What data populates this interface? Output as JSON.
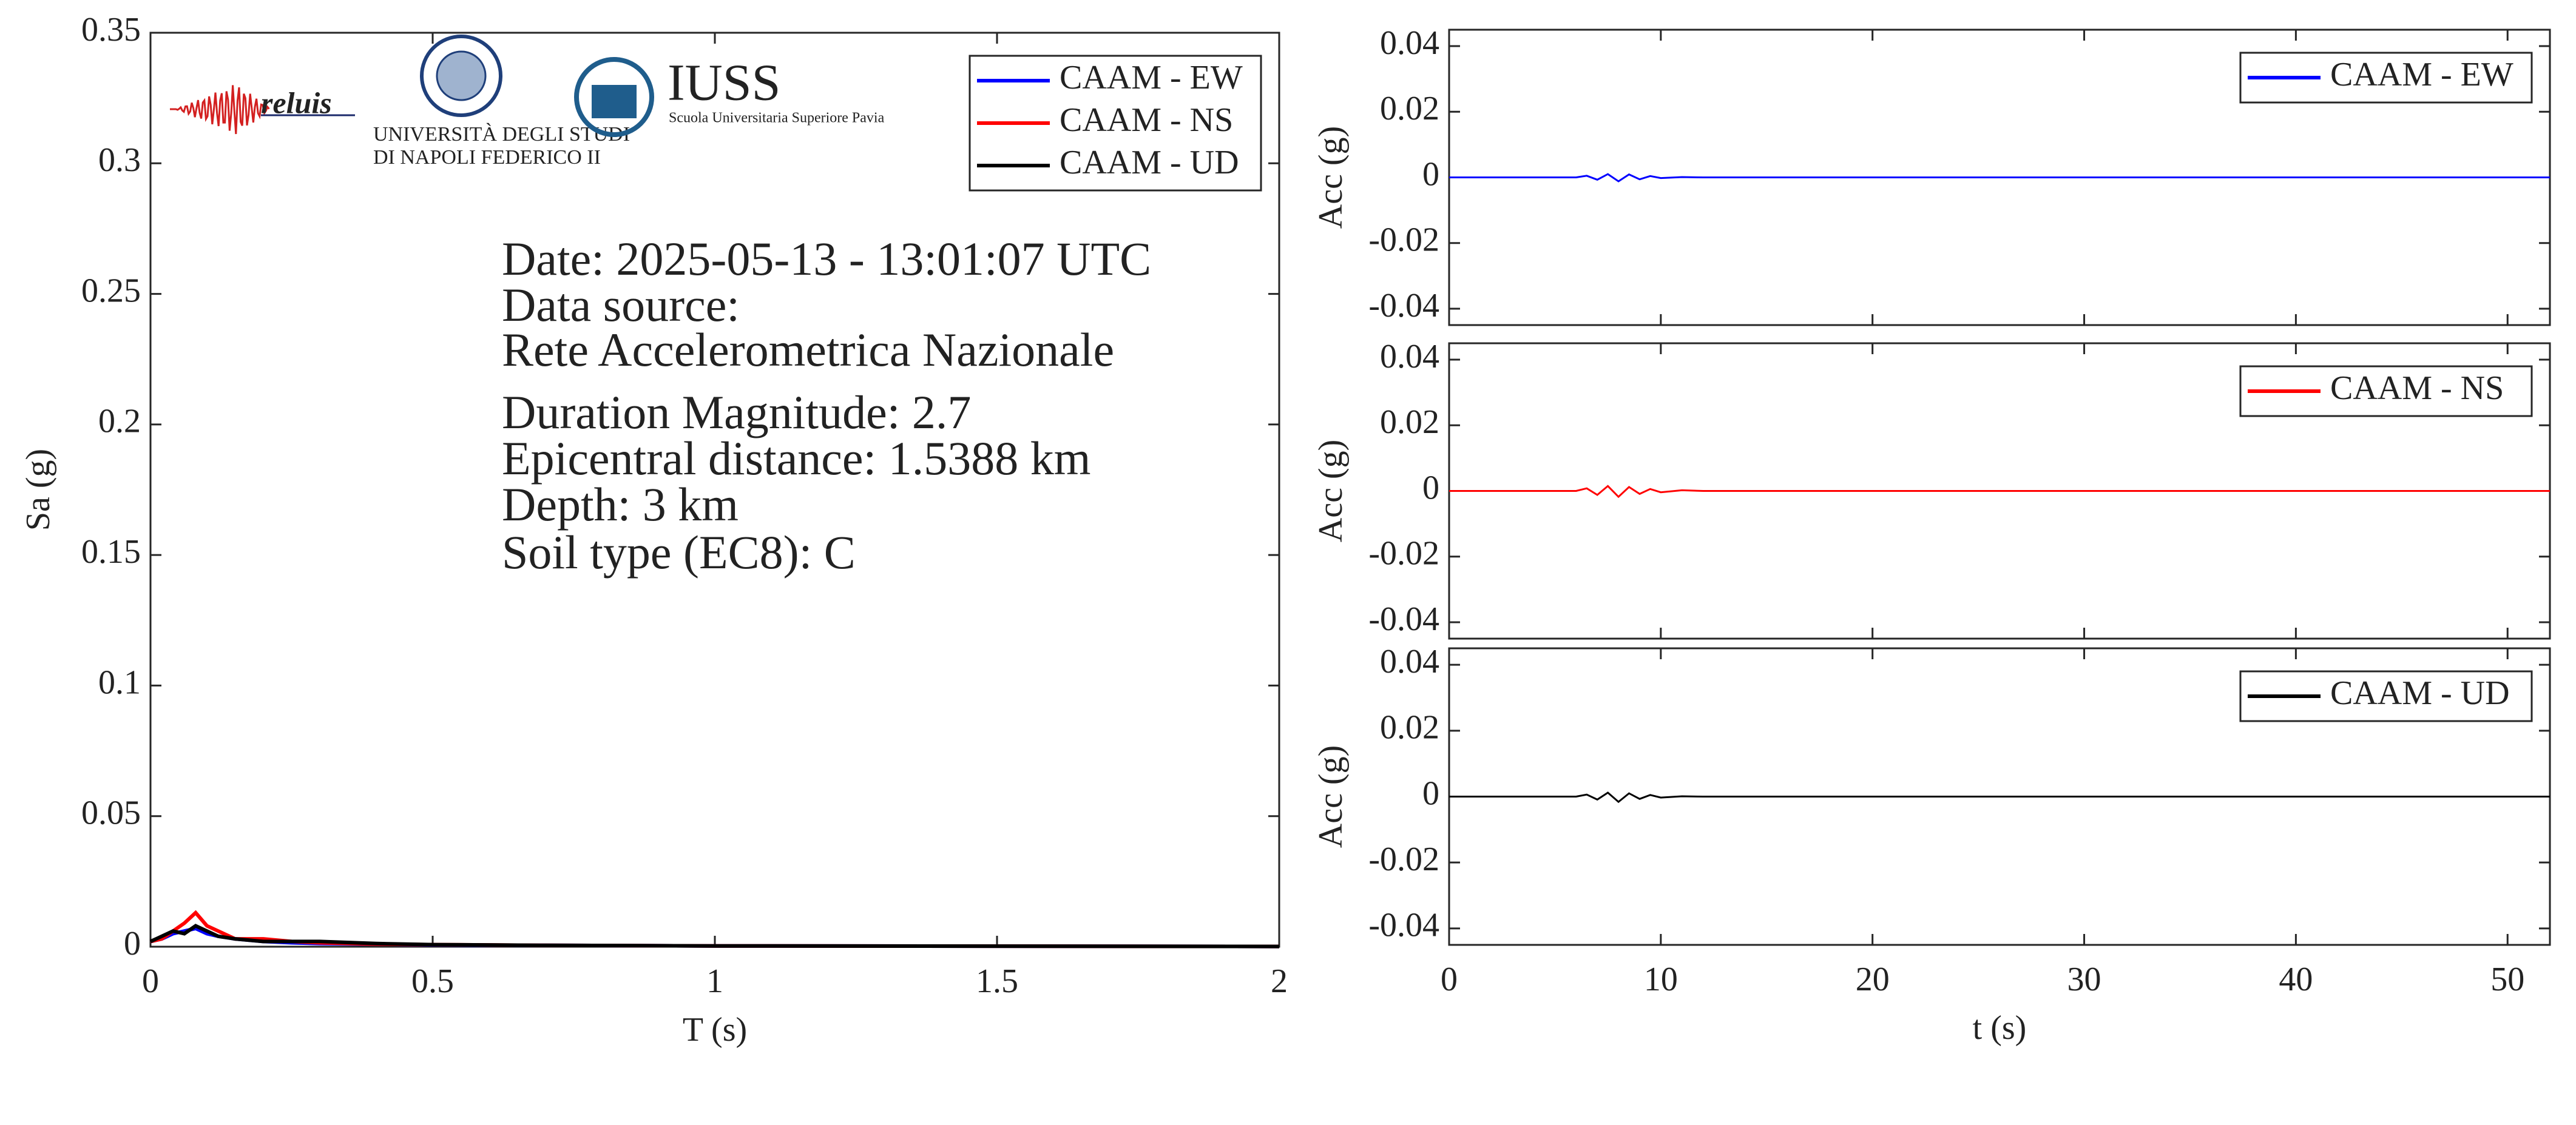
{
  "chart_data": [
    {
      "type": "line",
      "xlabel": "T (s)",
      "ylabel": "Sa (g)",
      "xlim": [
        0,
        2
      ],
      "ylim": [
        0,
        0.35
      ],
      "xticks": [
        0,
        0.5,
        1,
        1.5,
        2
      ],
      "yticks": [
        0,
        0.05,
        0.1,
        0.15,
        0.2,
        0.25,
        0.3,
        0.35
      ],
      "x": [
        0,
        0.02,
        0.04,
        0.06,
        0.08,
        0.1,
        0.12,
        0.15,
        0.2,
        0.25,
        0.3,
        0.4,
        0.5,
        0.7,
        1,
        1.5,
        2
      ],
      "series": [
        {
          "name": "CAAM - EW",
          "color": "#0000ff",
          "values": [
            0.002,
            0.003,
            0.005,
            0.006,
            0.007,
            0.005,
            0.004,
            0.003,
            0.002,
            0.0015,
            0.0012,
            0.001,
            0.0007,
            0.0005,
            0.0003,
            0.0002,
            0.0001
          ]
        },
        {
          "name": "CAAM - NS",
          "color": "#ff0000",
          "values": [
            0.002,
            0.003,
            0.006,
            0.009,
            0.013,
            0.008,
            0.006,
            0.003,
            0.003,
            0.002,
            0.0015,
            0.001,
            0.0008,
            0.0005,
            0.0003,
            0.0002,
            0.0001
          ]
        },
        {
          "name": "CAAM - UD",
          "color": "#000000",
          "values": [
            0.002,
            0.004,
            0.006,
            0.005,
            0.008,
            0.006,
            0.004,
            0.003,
            0.002,
            0.002,
            0.002,
            0.0012,
            0.0008,
            0.0005,
            0.0003,
            0.0002,
            0.0001
          ]
        }
      ],
      "legend": "upper right",
      "annotations": [
        "Date: 2025-05-13 - 13:01:07 UTC",
        "Data source:",
        "Rete Accelerometrica Nazionale",
        "Duration Magnitude: 2.7",
        "Epicentral distance: 1.5388 km",
        "Depth: 3 km",
        "Soil type (EC8): C"
      ],
      "logo_texts": [
        "reluis",
        "UNIVERSITÀ DEGLI STUDI",
        "DI NAPOLI FEDERICO II",
        "IUSS",
        "Scuola Universitaria Superiore Pavia"
      ]
    },
    {
      "type": "line",
      "ylabel": "Acc (g)",
      "xlim": [
        0,
        52
      ],
      "ylim": [
        -0.045,
        0.045
      ],
      "xticks": [
        0,
        10,
        20,
        30,
        40,
        50
      ],
      "yticks": [
        -0.04,
        -0.02,
        0,
        0.02,
        0.04
      ],
      "x": [
        0,
        6,
        6.5,
        7,
        7.5,
        8,
        8.5,
        9,
        9.5,
        10,
        11,
        12,
        52
      ],
      "series": [
        {
          "name": "CAAM - EW",
          "color": "#0000ff",
          "values": [
            0,
            0,
            0.0005,
            -0.0007,
            0.001,
            -0.0012,
            0.0009,
            -0.0006,
            0.0004,
            -0.0002,
            0.0001,
            0,
            0
          ]
        }
      ],
      "legend": "upper right"
    },
    {
      "type": "line",
      "ylabel": "Acc (g)",
      "xlim": [
        0,
        52
      ],
      "ylim": [
        -0.045,
        0.045
      ],
      "xticks": [
        0,
        10,
        20,
        30,
        40,
        50
      ],
      "yticks": [
        -0.04,
        -0.02,
        0,
        0.02,
        0.04
      ],
      "x": [
        0,
        6,
        6.5,
        7,
        7.5,
        8,
        8.5,
        9,
        9.5,
        10,
        11,
        12,
        52
      ],
      "series": [
        {
          "name": "CAAM - NS",
          "color": "#ff0000",
          "values": [
            0,
            0,
            0.0008,
            -0.0012,
            0.0015,
            -0.0018,
            0.0012,
            -0.0009,
            0.0006,
            -0.0004,
            0.0002,
            0,
            0
          ]
        }
      ],
      "legend": "upper right"
    },
    {
      "type": "line",
      "ylabel": "Acc (g)",
      "xlabel": "t (s)",
      "xlim": [
        0,
        52
      ],
      "ylim": [
        -0.045,
        0.045
      ],
      "xticks": [
        0,
        10,
        20,
        30,
        40,
        50
      ],
      "yticks": [
        -0.04,
        -0.02,
        0,
        0.02,
        0.04
      ],
      "x": [
        0,
        6,
        6.5,
        7,
        7.5,
        8,
        8.5,
        9,
        9.5,
        10,
        11,
        12,
        52
      ],
      "series": [
        {
          "name": "CAAM - UD",
          "color": "#000000",
          "values": [
            0,
            0,
            0.0006,
            -0.0009,
            0.0012,
            -0.0016,
            0.001,
            -0.0007,
            0.0005,
            -0.0003,
            0.0001,
            0,
            0
          ]
        }
      ],
      "legend": "upper right"
    }
  ]
}
